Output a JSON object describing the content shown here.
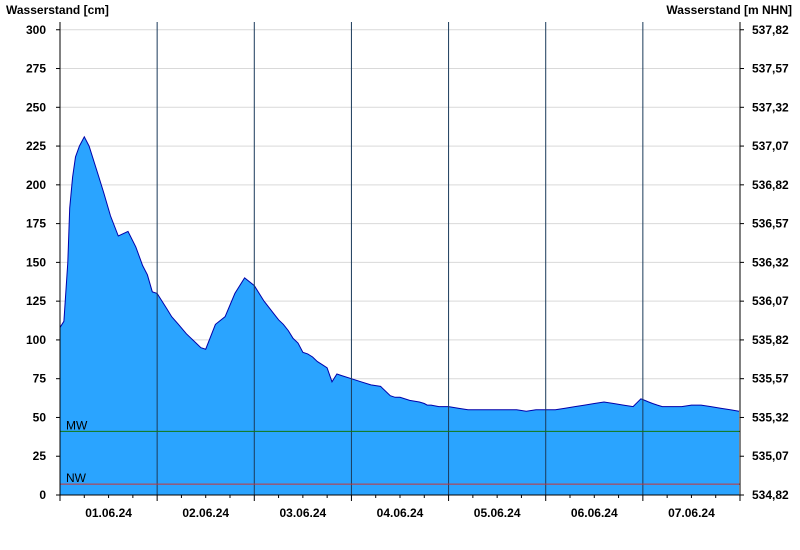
{
  "chart_data": {
    "type": "area",
    "y_left_label": "Wasserstand [cm]",
    "y_right_label": "Wasserstand [m NHN]",
    "ylim": [
      0,
      305
    ],
    "y_ticks_left": [
      0,
      25,
      50,
      75,
      100,
      125,
      150,
      175,
      200,
      225,
      250,
      275,
      300
    ],
    "y_ticks_right": [
      "534,82",
      "535,07",
      "535,32",
      "535,57",
      "535,82",
      "536,07",
      "536,32",
      "536,57",
      "536,82",
      "537,07",
      "537,32",
      "537,57",
      "537,82"
    ],
    "x_tick_labels": [
      "01.06.24",
      "02.06.24",
      "03.06.24",
      "04.06.24",
      "05.06.24",
      "06.06.24",
      "07.06.24"
    ],
    "x_range_days": [
      0.0,
      7.0
    ],
    "day_lines_at": [
      1,
      2,
      3,
      4,
      5,
      6
    ],
    "fill_color": "#2aa4ff",
    "line_color": "#0000aa",
    "reference_lines": [
      {
        "label": "MW",
        "value": 41,
        "color": "#117711"
      },
      {
        "label": "NW",
        "value": 7,
        "color": "#cc3333"
      }
    ],
    "series": [
      {
        "x": [
          0.0,
          0.04,
          0.08,
          0.1,
          0.13,
          0.16,
          0.2,
          0.25,
          0.3,
          0.35,
          0.4,
          0.45,
          0.52,
          0.6,
          0.7,
          0.78,
          0.85,
          0.9,
          0.95,
          1.0,
          1.05,
          1.1,
          1.15,
          1.22,
          1.3,
          1.4,
          1.45,
          1.5,
          1.6,
          1.7,
          1.8,
          1.9,
          2.0,
          2.1,
          2.2,
          2.25,
          2.3,
          2.35,
          2.4,
          2.45,
          2.5,
          2.55,
          2.6,
          2.65,
          2.7,
          2.75,
          2.8,
          2.85,
          2.9,
          3.0,
          3.1,
          3.2,
          3.3,
          3.4,
          3.45,
          3.5,
          3.6,
          3.7,
          3.75,
          3.78,
          3.82,
          3.9,
          4.0,
          4.1,
          4.2,
          4.3,
          4.4,
          4.45,
          4.5,
          4.6,
          4.7,
          4.8,
          4.9,
          5.0,
          5.1,
          5.2,
          5.3,
          5.4,
          5.5,
          5.6,
          5.7,
          5.8,
          5.9,
          5.98,
          6.02,
          6.06,
          6.1,
          6.15,
          6.2,
          6.3,
          6.4,
          6.5,
          6.6,
          6.7,
          6.8,
          6.9,
          6.99
        ],
        "y": [
          108,
          112,
          150,
          185,
          205,
          218,
          225,
          231,
          225,
          215,
          205,
          195,
          180,
          167,
          170,
          160,
          148,
          142,
          131,
          130,
          125,
          120,
          115,
          110,
          104,
          98,
          95,
          94,
          110,
          115,
          130,
          140,
          135,
          125,
          117,
          113,
          110,
          106,
          101,
          98,
          92,
          91,
          89,
          86,
          84,
          82,
          73,
          78,
          77,
          75,
          73,
          71,
          70,
          64,
          63,
          63,
          61,
          60,
          59,
          58,
          58,
          57,
          57,
          56,
          55,
          55,
          55,
          55,
          55,
          55,
          55,
          54,
          55,
          55,
          55,
          56,
          57,
          58,
          59,
          60,
          59,
          58,
          57,
          62,
          61,
          60,
          59,
          58,
          57,
          57,
          57,
          58,
          58,
          57,
          56,
          55,
          54
        ]
      }
    ]
  }
}
